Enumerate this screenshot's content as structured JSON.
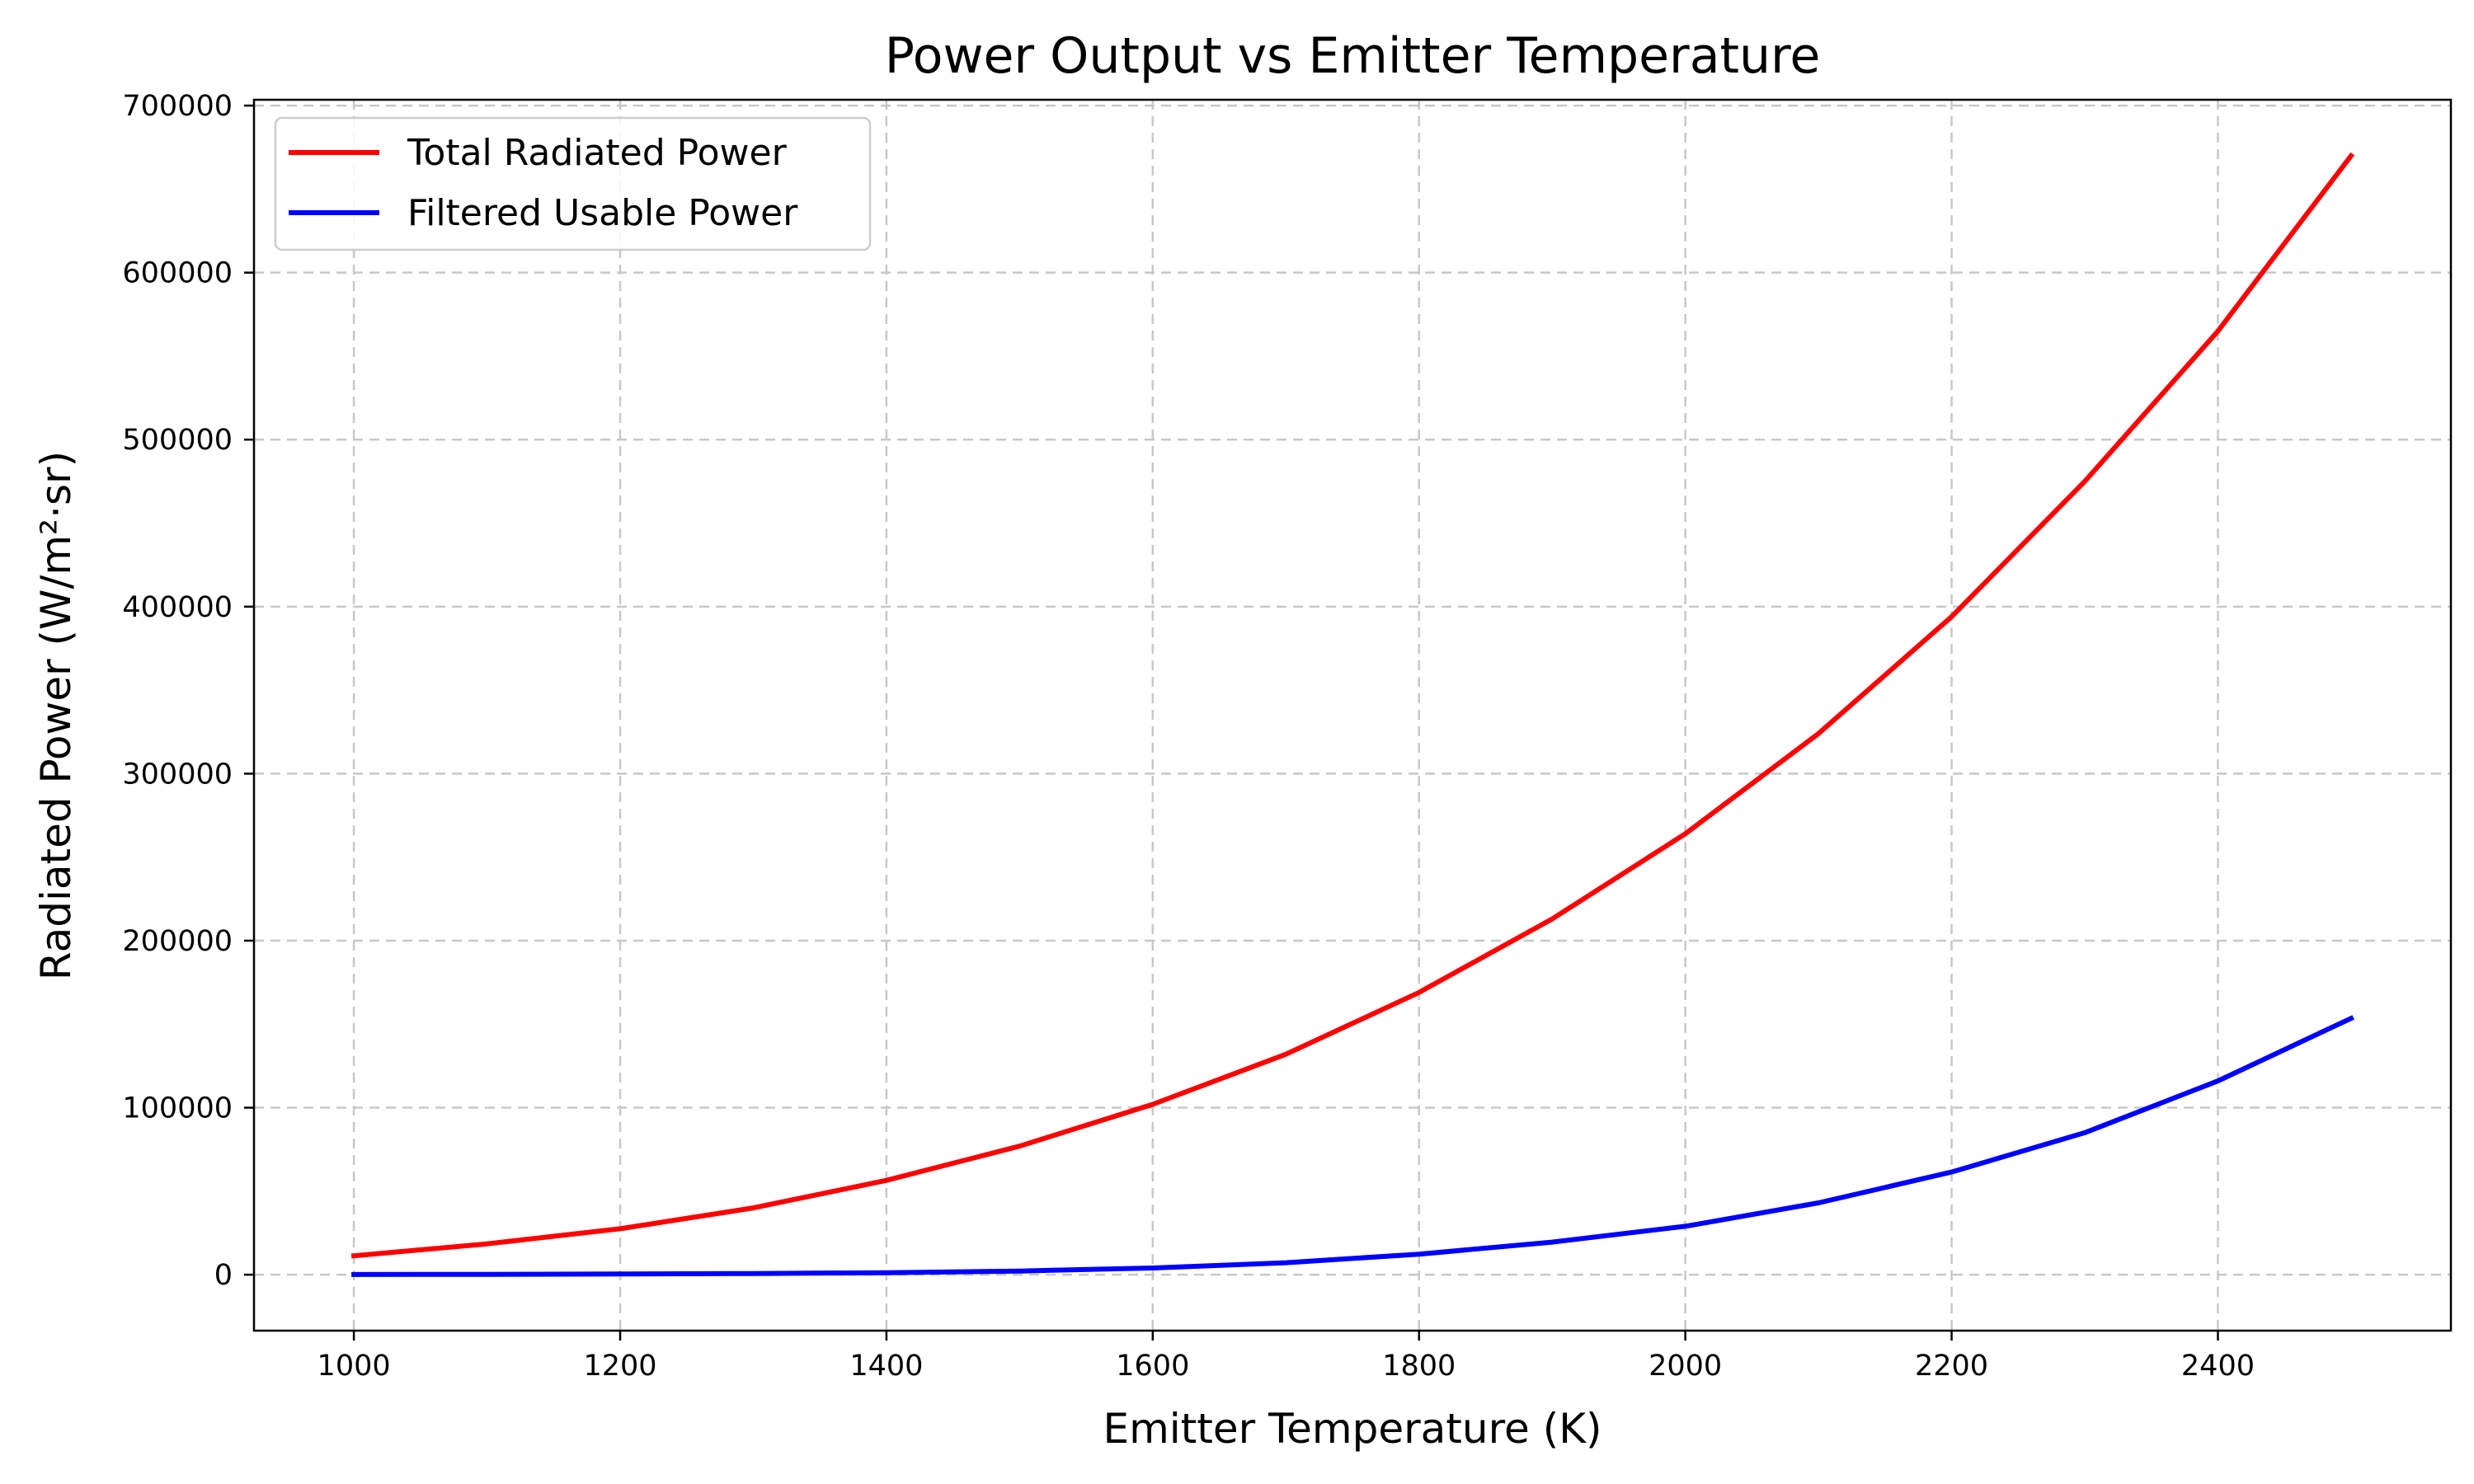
{
  "chart_data": {
    "type": "line",
    "title": "Power Output vs Emitter Temperature",
    "xlabel": "Emitter Temperature (K)",
    "ylabel": "Radiated Power (W/m²·sr)",
    "xlim": [
      925,
      2575
    ],
    "ylim": [
      -33500,
      703500
    ],
    "x_ticks": [
      1000,
      1200,
      1400,
      1600,
      1800,
      2000,
      2200,
      2400
    ],
    "y_ticks": [
      0,
      100000,
      200000,
      300000,
      400000,
      500000,
      600000,
      700000
    ],
    "x_tick_labels": [
      "1000",
      "1200",
      "1400",
      "1600",
      "1800",
      "2000",
      "2200",
      "2400"
    ],
    "y_tick_labels": [
      "0",
      "100000",
      "200000",
      "300000",
      "400000",
      "500000",
      "600000",
      "700000"
    ],
    "grid": true,
    "legend_position": "top-left",
    "x": [
      1000,
      1100,
      1200,
      1300,
      1400,
      1500,
      1600,
      1700,
      1800,
      1900,
      2000,
      2100,
      2200,
      2300,
      2400,
      2500
    ],
    "series": [
      {
        "name": "Total Radiated Power",
        "color": "#ff0000",
        "values": [
          11300,
          18500,
          27500,
          40000,
          56500,
          77000,
          102000,
          132000,
          169000,
          213000,
          264000,
          324000,
          394000,
          475000,
          565000,
          670000
        ]
      },
      {
        "name": "Filtered Usable Power",
        "color": "#0000ff",
        "values": [
          100,
          200,
          400,
          700,
          1200,
          2200,
          4000,
          7200,
          12300,
          19500,
          29000,
          43000,
          61500,
          85000,
          116000,
          153500
        ]
      }
    ]
  }
}
